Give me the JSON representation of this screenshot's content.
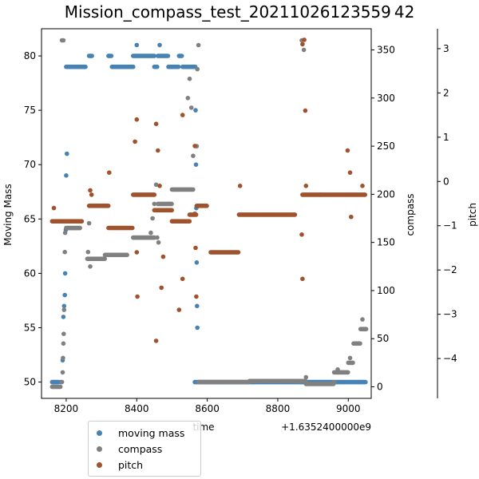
{
  "chart_data": {
    "type": "scatter",
    "title": "Mission_compass_test_20211026123559 42",
    "xlabel": "time",
    "x_offset_label": "+1.6352400000e9",
    "x_ticks": [
      8200,
      8400,
      8600,
      8800,
      9000
    ],
    "xlim": [
      8130,
      9065
    ],
    "axes": {
      "moving_mass": {
        "label": "Moving Mass",
        "ylim": [
          48.5,
          82.5
        ],
        "ticks": [
          50,
          55,
          60,
          65,
          70,
          75,
          80
        ]
      },
      "compass": {
        "label": "compass",
        "ylim": [
          -12,
          372
        ],
        "ticks": [
          0,
          50,
          100,
          150,
          200,
          250,
          300,
          350
        ]
      },
      "pitch": {
        "label": "pitch",
        "ylim": [
          -4.9,
          3.45
        ],
        "ticks": [
          -4,
          -3,
          -2,
          -1,
          0,
          1,
          2,
          3
        ]
      }
    },
    "series": [
      {
        "name": "moving mass",
        "axis": "moving_mass",
        "color": "#4682b4",
        "segments": [
          [
            8160,
            8180,
            50
          ],
          [
            8200,
            8255,
            79
          ],
          [
            8265,
            8275,
            80
          ],
          [
            8320,
            8330,
            80
          ],
          [
            8330,
            8390,
            79
          ],
          [
            8390,
            8450,
            80
          ],
          [
            8450,
            8460,
            79
          ],
          [
            8460,
            8490,
            80
          ],
          [
            8490,
            8520,
            79
          ],
          [
            8520,
            8530,
            80
          ],
          [
            8530,
            8565,
            79
          ],
          [
            8565,
            9050,
            50
          ]
        ],
        "points": [
          [
            8185,
            50
          ],
          [
            8190,
            52
          ],
          [
            8192,
            56
          ],
          [
            8194,
            57
          ],
          [
            8196,
            58
          ],
          [
            8197,
            60
          ],
          [
            8199,
            64
          ],
          [
            8200,
            69
          ],
          [
            8202,
            71
          ],
          [
            8205,
            79
          ],
          [
            8400,
            81
          ],
          [
            8465,
            81
          ],
          [
            8566,
            79
          ],
          [
            8567,
            75
          ],
          [
            8568,
            70
          ],
          [
            8569,
            66
          ],
          [
            8570,
            61
          ],
          [
            8571,
            57
          ],
          [
            8572,
            55
          ]
        ]
      },
      {
        "name": "compass",
        "axis": "compass",
        "color": "#808080",
        "segments": [
          [
            8160,
            8185,
            0
          ],
          [
            8200,
            8240,
            165
          ],
          [
            8260,
            8310,
            133
          ],
          [
            8310,
            8375,
            137
          ],
          [
            8390,
            8450,
            155
          ],
          [
            8460,
            8500,
            190
          ],
          [
            8500,
            8560,
            205
          ],
          [
            8575,
            8720,
            5
          ],
          [
            8720,
            8880,
            6
          ],
          [
            8880,
            8960,
            3
          ],
          [
            8960,
            9000,
            15
          ],
          [
            9000,
            9015,
            25
          ],
          [
            9015,
            9035,
            45
          ],
          [
            9035,
            9052,
            60
          ]
        ],
        "points": [
          [
            8188,
            5
          ],
          [
            8190,
            15
          ],
          [
            8191,
            30
          ],
          [
            8192,
            45
          ],
          [
            8193,
            55
          ],
          [
            8194,
            80
          ],
          [
            8196,
            140
          ],
          [
            8197,
            160
          ],
          [
            8188,
            360
          ],
          [
            8192,
            360
          ],
          [
            8262,
            140
          ],
          [
            8265,
            170
          ],
          [
            8268,
            125
          ],
          [
            8440,
            160
          ],
          [
            8445,
            175
          ],
          [
            8450,
            190
          ],
          [
            8455,
            210
          ],
          [
            8458,
            155
          ],
          [
            8462,
            150
          ],
          [
            8545,
            300
          ],
          [
            8550,
            320
          ],
          [
            8555,
            290
          ],
          [
            8560,
            240
          ],
          [
            8565,
            180
          ],
          [
            8570,
            250
          ],
          [
            8572,
            330
          ],
          [
            8575,
            355
          ],
          [
            8868,
            360
          ],
          [
            8874,
            350
          ],
          [
            8880,
            10
          ],
          [
            8960,
            5
          ],
          [
            8970,
            18
          ],
          [
            9005,
            30
          ],
          [
            9040,
            70
          ]
        ]
      },
      {
        "name": "pitch",
        "axis": "pitch",
        "color": "#a0522d",
        "segments": [
          [
            8160,
            8200,
            -0.9
          ],
          [
            8200,
            8245,
            -0.9
          ],
          [
            8265,
            8320,
            -0.55
          ],
          [
            8320,
            8390,
            -1.05
          ],
          [
            8390,
            8450,
            -0.3
          ],
          [
            8450,
            8500,
            -0.65
          ],
          [
            8500,
            8550,
            -0.9
          ],
          [
            8550,
            8570,
            -0.75
          ],
          [
            8570,
            8600,
            -0.55
          ],
          [
            8610,
            8690,
            -1.6
          ],
          [
            8690,
            8850,
            -0.75
          ],
          [
            8870,
            8920,
            -0.3
          ],
          [
            8920,
            9050,
            -0.3
          ]
        ],
        "points": [
          [
            8165,
            -0.6
          ],
          [
            8268,
            -0.2
          ],
          [
            8272,
            -0.3
          ],
          [
            8322,
            0.2
          ],
          [
            8400,
            1.4
          ],
          [
            8395,
            0.9
          ],
          [
            8400,
            -1.6
          ],
          [
            8402,
            -2.6
          ],
          [
            8455,
            1.3
          ],
          [
            8455,
            -3.6
          ],
          [
            8460,
            0.7
          ],
          [
            8465,
            -0.1
          ],
          [
            8470,
            -2.4
          ],
          [
            8475,
            -1.7
          ],
          [
            8530,
            1.5
          ],
          [
            8530,
            -2.2
          ],
          [
            8520,
            -2.9
          ],
          [
            8565,
            0.8
          ],
          [
            8567,
            -1.5
          ],
          [
            8569,
            -2.6
          ],
          [
            8693,
            -0.1
          ],
          [
            8868,
            -1.2
          ],
          [
            8870,
            -2.2
          ],
          [
            8870,
            3.1
          ],
          [
            8875,
            3.2
          ],
          [
            8878,
            1.6
          ],
          [
            8880,
            -0.1
          ],
          [
            8998,
            0.7
          ],
          [
            9005,
            0.2
          ],
          [
            9008,
            -0.8
          ],
          [
            9040,
            -0.1
          ]
        ]
      }
    ],
    "legend": {
      "placement": "bottom-left",
      "entries": [
        "moving mass",
        "compass",
        "pitch"
      ]
    }
  }
}
